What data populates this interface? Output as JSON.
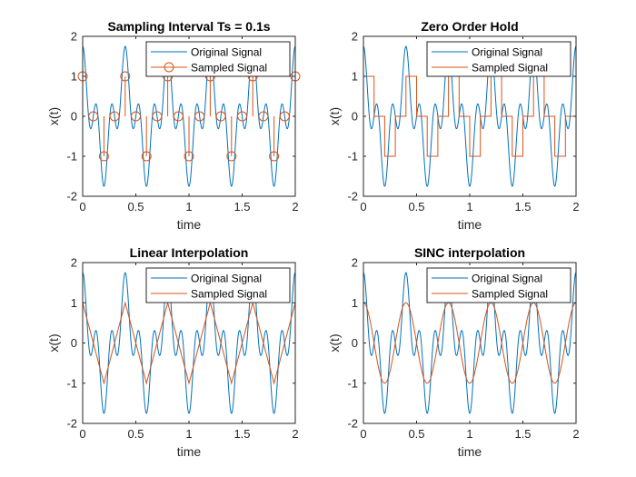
{
  "figure": {
    "colors": {
      "original": "#0072BD",
      "sampled": "#D95319",
      "axis": "#262626",
      "background": "#ffffff"
    }
  },
  "chart_data": [
    {
      "type": "line",
      "title": "Sampling Interval Ts = 0.1s",
      "xlabel": "time",
      "ylabel": "x(t)",
      "xlim": [
        0,
        2
      ],
      "ylim": [
        -2,
        2
      ],
      "xticks": [
        0,
        0.5,
        1,
        1.5,
        2
      ],
      "xtick_labels": [
        "0",
        "0.5",
        "1",
        "1.5",
        "2"
      ],
      "yticks": [
        -2,
        -1,
        0,
        1,
        2
      ],
      "ytick_labels": [
        "-2",
        "-1",
        "0",
        "1",
        "2"
      ],
      "grid": false,
      "legend_position": "top-right",
      "series": [
        {
          "name": "Original Signal",
          "kind": "continuous",
          "expr": "cos(2*pi*2.5*t)+cos(2*pi*7.5*t)*0.75",
          "color": "#0072BD"
        },
        {
          "name": "Sampled Signal",
          "kind": "stem",
          "color": "#D95319",
          "x": [
            0,
            0.1,
            0.2,
            0.3,
            0.4,
            0.5,
            0.6,
            0.7,
            0.8,
            0.9,
            1.0,
            1.1,
            1.2,
            1.3,
            1.4,
            1.5,
            1.6,
            1.7,
            1.8,
            1.9,
            2.0
          ],
          "y": [
            1,
            0,
            -1,
            0,
            1,
            0,
            -1,
            0,
            1,
            0,
            -1,
            0,
            1,
            0,
            -1,
            0,
            1,
            0,
            -1,
            0,
            1
          ]
        }
      ]
    },
    {
      "type": "line",
      "title": "Zero Order Hold",
      "xlabel": "time",
      "ylabel": "x(t)",
      "xlim": [
        0,
        2
      ],
      "ylim": [
        -2,
        2
      ],
      "xticks": [
        0,
        0.5,
        1,
        1.5,
        2
      ],
      "xtick_labels": [
        "0",
        "0.5",
        "1",
        "1.5",
        "2"
      ],
      "yticks": [
        -2,
        -1,
        0,
        1,
        2
      ],
      "ytick_labels": [
        "-2",
        "-1",
        "0",
        "1",
        "2"
      ],
      "grid": false,
      "legend_position": "top-right",
      "series": [
        {
          "name": "Original Signal",
          "kind": "continuous",
          "expr": "cos(2*pi*2.5*t)+cos(2*pi*7.5*t)*0.75",
          "color": "#0072BD"
        },
        {
          "name": "Sampled Signal",
          "kind": "zoh",
          "color": "#D95319",
          "x": [
            0,
            0.1,
            0.2,
            0.3,
            0.4,
            0.5,
            0.6,
            0.7,
            0.8,
            0.9,
            1.0,
            1.1,
            1.2,
            1.3,
            1.4,
            1.5,
            1.6,
            1.7,
            1.8,
            1.9,
            2.0
          ],
          "y": [
            1,
            0,
            -1,
            0,
            1,
            0,
            -1,
            0,
            1,
            0,
            -1,
            0,
            1,
            0,
            -1,
            0,
            1,
            0,
            -1,
            0,
            1
          ]
        }
      ]
    },
    {
      "type": "line",
      "title": "Linear Interpolation",
      "xlabel": "time",
      "ylabel": "x(t)",
      "xlim": [
        0,
        2
      ],
      "ylim": [
        -2,
        2
      ],
      "xticks": [
        0,
        0.5,
        1,
        1.5,
        2
      ],
      "xtick_labels": [
        "0",
        "0.5",
        "1",
        "1.5",
        "2"
      ],
      "yticks": [
        -2,
        -1,
        0,
        1,
        2
      ],
      "ytick_labels": [
        "-2",
        "-1",
        "0",
        "1",
        "2"
      ],
      "grid": false,
      "legend_position": "top-right",
      "series": [
        {
          "name": "Original Signal",
          "kind": "continuous",
          "expr": "cos(2*pi*2.5*t)+cos(2*pi*7.5*t)*0.75",
          "color": "#0072BD"
        },
        {
          "name": "Sampled Signal",
          "kind": "linear",
          "color": "#D95319",
          "x": [
            0,
            0.2,
            0.4,
            0.6,
            0.8,
            1.0,
            1.2,
            1.4,
            1.6,
            1.8,
            2.0
          ],
          "y": [
            1,
            -1,
            1,
            -1,
            1,
            -1,
            1,
            -1,
            1,
            -1,
            1
          ]
        }
      ]
    },
    {
      "type": "line",
      "title": "SINC interpolation",
      "xlabel": "time",
      "ylabel": "x(t)",
      "xlim": [
        0,
        2
      ],
      "ylim": [
        -2,
        2
      ],
      "xticks": [
        0,
        0.5,
        1,
        1.5,
        2
      ],
      "xtick_labels": [
        "0",
        "0.5",
        "1",
        "1.5",
        "2"
      ],
      "yticks": [
        -2,
        -1,
        0,
        1,
        2
      ],
      "ytick_labels": [
        "-2",
        "-1",
        "0",
        "1",
        "2"
      ],
      "grid": false,
      "legend_position": "top-right",
      "series": [
        {
          "name": "Original Signal",
          "kind": "continuous",
          "expr": "cos(2*pi*2.5*t)+cos(2*pi*7.5*t)*0.75",
          "color": "#0072BD"
        },
        {
          "name": "Sampled Signal",
          "kind": "continuous",
          "expr": "cos(2*pi*2.5*t)",
          "color": "#D95319"
        }
      ]
    }
  ]
}
